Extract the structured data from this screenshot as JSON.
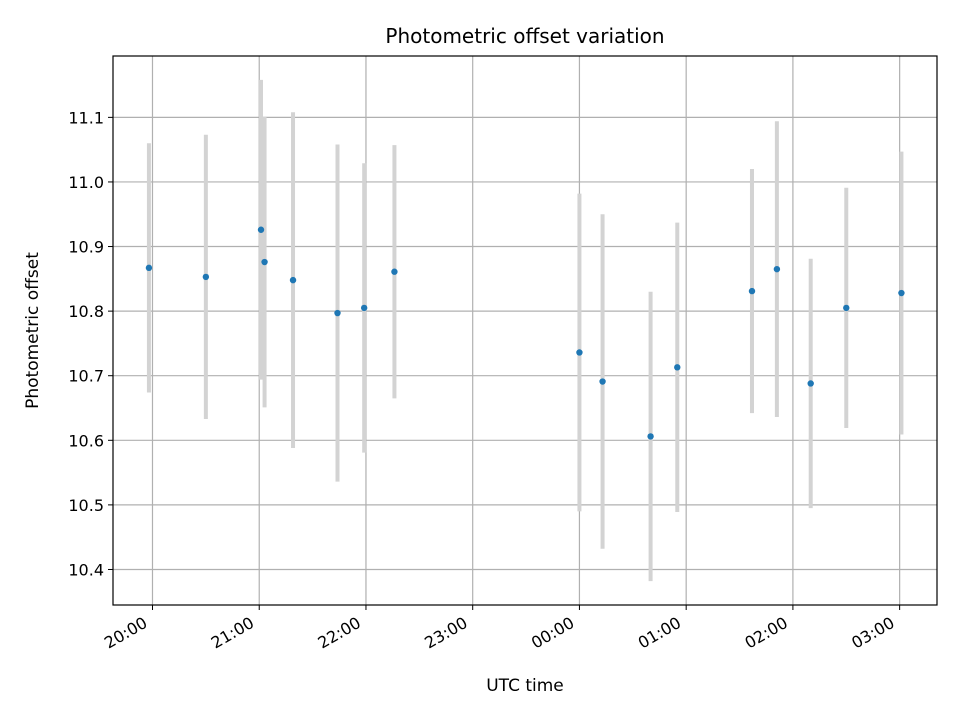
{
  "chart_data": {
    "type": "scatter",
    "title": "Photometric offset variation",
    "xlabel": "UTC time",
    "ylabel": "Photometric offset",
    "grid": true,
    "xlim_hours": [
      19.63,
      27.35
    ],
    "ylim": [
      10.345,
      11.195
    ],
    "x_ticks": [
      "20:00",
      "21:00",
      "22:00",
      "23:00",
      "00:00",
      "01:00",
      "02:00",
      "03:00"
    ],
    "y_ticks": [
      "10.4",
      "10.5",
      "10.6",
      "10.7",
      "10.8",
      "10.9",
      "11.0",
      "11.1"
    ],
    "colors": {
      "marker": "#1f77b4",
      "errorbar": "#d3d3d3",
      "grid": "#b0b0b0"
    },
    "series": [
      {
        "points": [
          {
            "t": "19:58",
            "y": 10.867,
            "yerr": 0.193
          },
          {
            "t": "20:30",
            "y": 10.853,
            "yerr": 0.22
          },
          {
            "t": "21:01",
            "y": 10.926,
            "yerr": 0.232
          },
          {
            "t": "21:03",
            "y": 10.876,
            "yerr": 0.225
          },
          {
            "t": "21:19",
            "y": 10.848,
            "yerr": 0.26
          },
          {
            "t": "21:44",
            "y": 10.797,
            "yerr": 0.261
          },
          {
            "t": "21:59",
            "y": 10.805,
            "yerr": 0.224
          },
          {
            "t": "22:16",
            "y": 10.861,
            "yerr": 0.196
          },
          {
            "t": "00:00",
            "y": 10.736,
            "yerr": 0.246
          },
          {
            "t": "00:13",
            "y": 10.691,
            "yerr": 0.259
          },
          {
            "t": "00:40",
            "y": 10.606,
            "yerr": 0.224
          },
          {
            "t": "00:55",
            "y": 10.713,
            "yerr": 0.224
          },
          {
            "t": "01:37",
            "y": 10.831,
            "yerr": 0.189
          },
          {
            "t": "01:51",
            "y": 10.865,
            "yerr": 0.229
          },
          {
            "t": "02:10",
            "y": 10.688,
            "yerr": 0.193
          },
          {
            "t": "02:30",
            "y": 10.805,
            "yerr": 0.186
          },
          {
            "t": "03:01",
            "y": 10.828,
            "yerr": 0.219
          }
        ]
      }
    ]
  }
}
